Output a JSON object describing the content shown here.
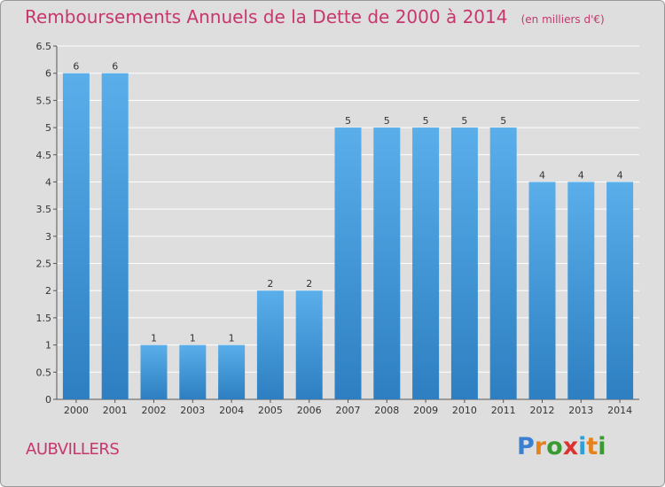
{
  "title": "Remboursements Annuels de la Dette de 2000 à 2014",
  "unit_note": "(en milliers d'€)",
  "commune": "AUBVILLERS",
  "logo": {
    "text": "Proxiti",
    "letter_colors": [
      "#3a7fd0",
      "#e6821e",
      "#3a9a32",
      "#d9342f",
      "#2f9fd8",
      "#e6821e",
      "#3a9a32"
    ]
  },
  "colors": {
    "bar_top": "#5aaeea",
    "bar_bottom": "#2d7fc1",
    "accent": "#c8366e",
    "plot_background": "#dedede",
    "gridline": "#ffffff"
  },
  "chart_data": {
    "type": "bar",
    "title": "Remboursements Annuels de la Dette de 2000 à 2014",
    "categories": [
      "2000",
      "2001",
      "2002",
      "2003",
      "2004",
      "2005",
      "2006",
      "2007",
      "2008",
      "2009",
      "2010",
      "2011",
      "2012",
      "2013",
      "2014"
    ],
    "values": [
      6,
      6,
      1,
      1,
      1,
      2,
      2,
      5,
      5,
      5,
      5,
      5,
      4,
      4,
      4
    ],
    "data_labels": [
      "6",
      "6",
      "1",
      "1",
      "1",
      "2",
      "2",
      "5",
      "5",
      "5",
      "5",
      "5",
      "4",
      "4",
      "4"
    ],
    "yticks": [
      "0",
      "0.5",
      "1",
      "1.5",
      "2",
      "2.5",
      "3",
      "3.5",
      "4",
      "4.5",
      "5",
      "5.5",
      "6",
      "6.5"
    ],
    "ylim": [
      0,
      6.5
    ],
    "xlabel": "",
    "ylabel": "",
    "grid": true,
    "legend": "none"
  }
}
